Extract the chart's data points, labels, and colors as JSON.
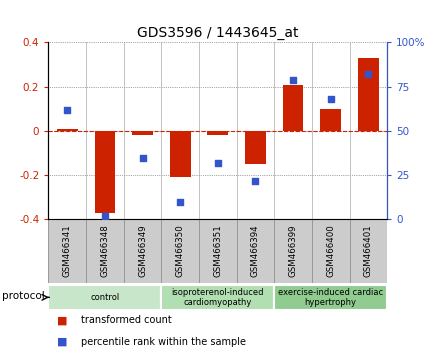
{
  "title": "GDS3596 / 1443645_at",
  "samples": [
    "GSM466341",
    "GSM466348",
    "GSM466349",
    "GSM466350",
    "GSM466351",
    "GSM466394",
    "GSM466399",
    "GSM466400",
    "GSM466401"
  ],
  "transformed_count": [
    0.01,
    -0.37,
    -0.02,
    -0.21,
    -0.02,
    -0.15,
    0.21,
    0.1,
    0.33
  ],
  "percentile_rank": [
    62,
    2,
    35,
    10,
    32,
    22,
    79,
    68,
    82
  ],
  "groups": [
    {
      "label": "control",
      "start": 0,
      "end": 3,
      "color": "#c8e6c9"
    },
    {
      "label": "isoproterenol-induced\ncardiomyopathy",
      "start": 3,
      "end": 6,
      "color": "#b2dfb2"
    },
    {
      "label": "exercise-induced cardiac\nhypertrophy",
      "start": 6,
      "end": 9,
      "color": "#90cc90"
    }
  ],
  "left_ylim": [
    -0.4,
    0.4
  ],
  "right_ylim": [
    0,
    100
  ],
  "left_yticks": [
    -0.4,
    -0.2,
    0.0,
    0.2,
    0.4
  ],
  "right_yticks": [
    0,
    25,
    50,
    75,
    100
  ],
  "right_yticklabels": [
    "0",
    "25",
    "50",
    "75",
    "100%"
  ],
  "bar_color": "#cc2200",
  "dot_color": "#3355cc",
  "zero_line_color": "#cc2200",
  "grid_color": "#555555",
  "left_label_color": "#cc2200",
  "right_label_color": "#3355cc",
  "sample_box_color": "#cccccc",
  "sample_box_edge": "#999999",
  "protocol_label": "protocol",
  "legend_bar_label": "transformed count",
  "legend_dot_label": "percentile rank within the sample",
  "bar_width": 0.55
}
